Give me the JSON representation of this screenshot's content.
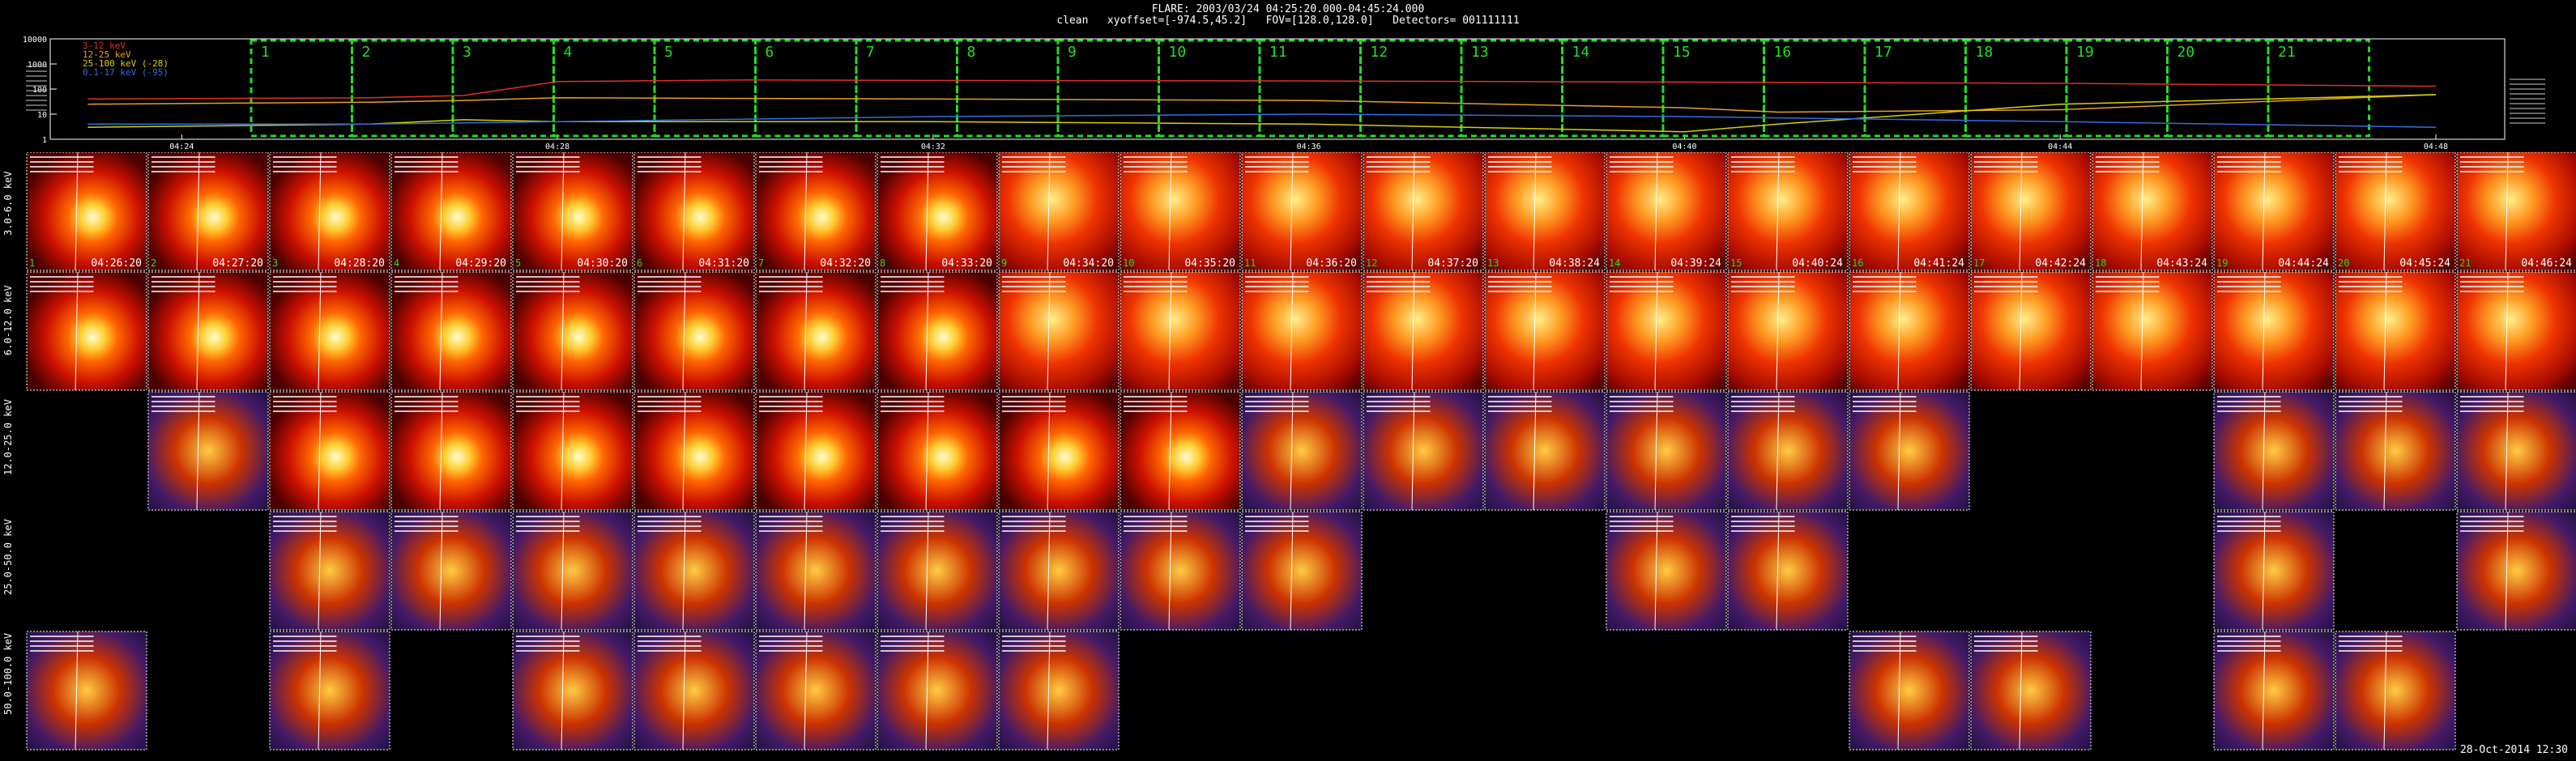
{
  "header": {
    "line1": "FLARE: 2003/03/24 04:25:20.000-04:45:24.000",
    "line2": "clean   xyoffset=[-974.5,45.2]   FOV=[128.0,128.0]   Detectors= 001111111"
  },
  "footer": "28-Oct-2014 12:30",
  "chart_data": [
    {
      "type": "line",
      "title": "",
      "xlabel": "",
      "ylabel": "",
      "yscale": "log",
      "ylim": [
        1,
        10000
      ],
      "xlim": [
        "04:22:36",
        "04:48:44"
      ],
      "x_ticks": [
        "04:24",
        "04:28",
        "04:32",
        "04:36",
        "04:40",
        "04:44",
        "04:48"
      ],
      "y_ticks": [
        "10000",
        "1000",
        "100",
        "10",
        "1"
      ],
      "legend_position": "top-left",
      "series": [
        {
          "name": "3-12 keV",
          "color": "#e03020",
          "x": [
            "04:23",
            "04:26",
            "04:27",
            "04:28",
            "04:30",
            "04:32",
            "04:36",
            "04:40",
            "04:44",
            "04:48"
          ],
          "y": [
            40,
            45,
            55,
            200,
            230,
            220,
            210,
            190,
            170,
            130
          ]
        },
        {
          "name": "12-25 keV",
          "color": "#e8a020",
          "x": [
            "04:23",
            "04:26",
            "04:27",
            "04:28",
            "04:32",
            "04:36",
            "04:40",
            "04:41",
            "04:44",
            "04:48"
          ],
          "y": [
            25,
            30,
            35,
            45,
            40,
            35,
            18,
            12,
            15,
            60
          ]
        },
        {
          "name": "25-100 keV (-28)",
          "color": "#d8d000",
          "x": [
            "04:23",
            "04:26",
            "04:27",
            "04:28",
            "04:32",
            "04:36",
            "04:40",
            "04:41",
            "04:44",
            "04:48"
          ],
          "y": [
            3,
            4,
            6,
            5,
            5,
            4,
            2,
            4,
            25,
            60
          ]
        },
        {
          "name": "0.1-17 keV (-95)",
          "color": "#3070e0",
          "x": [
            "04:23",
            "04:26",
            "04:28",
            "04:32",
            "04:36",
            "04:40",
            "04:44",
            "04:48"
          ],
          "y": [
            4,
            4,
            5,
            8,
            10,
            8,
            5,
            3
          ]
        }
      ],
      "intervals": [
        "1",
        "2",
        "3",
        "4",
        "5",
        "6",
        "7",
        "8",
        "9",
        "10",
        "11",
        "12",
        "13",
        "14",
        "15",
        "16",
        "17",
        "18",
        "19",
        "20",
        "21"
      ]
    },
    {
      "type": "heatmap",
      "title": "",
      "rows": [
        {
          "label": "3.0-6.0 keV",
          "cells": [
            1,
            1,
            1,
            1,
            1,
            1,
            1,
            1,
            1,
            1,
            1,
            1,
            1,
            1,
            1,
            1,
            1,
            1,
            1,
            1,
            1
          ],
          "times": [
            "04:26:20",
            "04:27:20",
            "04:28:20",
            "04:29:20",
            "04:30:20",
            "04:31:20",
            "04:32:20",
            "04:33:20",
            "04:34:20",
            "04:35:20",
            "04:36:20",
            "04:37:20",
            "04:38:24",
            "04:39:24",
            "04:40:24",
            "04:41:24",
            "04:42:24",
            "04:43:24",
            "04:44:24",
            "04:45:24",
            "04:46:24"
          ]
        },
        {
          "label": "6.0-12.0 keV",
          "cells": [
            1,
            1,
            1,
            1,
            1,
            1,
            1,
            1,
            1,
            1,
            1,
            1,
            1,
            1,
            1,
            1,
            1,
            1,
            1,
            1,
            1
          ]
        },
        {
          "label": "12.0-25.0 keV",
          "cells": [
            0,
            1,
            1,
            1,
            1,
            1,
            1,
            1,
            1,
            1,
            1,
            1,
            1,
            1,
            1,
            1,
            0,
            0,
            1,
            1,
            1
          ]
        },
        {
          "label": "25.0-50.0 keV",
          "cells": [
            0,
            0,
            1,
            1,
            1,
            1,
            1,
            1,
            1,
            1,
            1,
            0,
            0,
            1,
            1,
            0,
            0,
            0,
            1,
            0,
            1
          ]
        },
        {
          "label": "50.0-100.0 keV",
          "cells": [
            1,
            0,
            1,
            0,
            1,
            1,
            1,
            1,
            1,
            0,
            0,
            0,
            0,
            0,
            0,
            1,
            1,
            0,
            1,
            1,
            0
          ]
        }
      ]
    }
  ]
}
